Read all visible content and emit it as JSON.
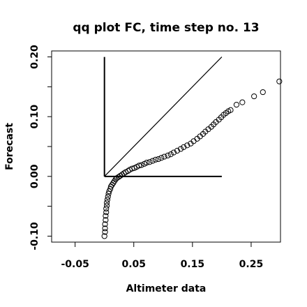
{
  "chart_data": {
    "type": "scatter",
    "title": "qq plot FC, time step no. 13",
    "xlabel": "Altimeter data",
    "ylabel": "Forecast",
    "xlim": [
      -0.09,
      0.3
    ],
    "ylim": [
      -0.11,
      0.21
    ],
    "x_ticks": [
      -0.05,
      0.05,
      0.15,
      0.25
    ],
    "x_tick_labels": [
      "-0.05",
      "0.05",
      "0.15",
      "0.25"
    ],
    "y_ticks": [
      -0.1,
      0.0,
      0.1,
      0.2
    ],
    "y_tick_labels": [
      "-0.10",
      "0.00",
      "0.10",
      "0.20"
    ],
    "grid": false,
    "reference_lines": [
      {
        "name": "",
        "x": [
          0,
          0.2
        ],
        "y": [
          0,
          0.2
        ]
      },
      {
        "name": "",
        "x": [
          0,
          0
        ],
        "y": [
          0,
          0.2
        ]
      },
      {
        "name": "",
        "x": [
          0,
          0.2
        ],
        "y": [
          0,
          0
        ]
      }
    ],
    "points": {
      "x": [
        0.0,
        0.001,
        0.001,
        0.001,
        0.002,
        0.002,
        0.003,
        0.003,
        0.004,
        0.004,
        0.005,
        0.006,
        0.007,
        0.008,
        0.01,
        0.011,
        0.013,
        0.015,
        0.017,
        0.019,
        0.021,
        0.024,
        0.027,
        0.03,
        0.033,
        0.036,
        0.04,
        0.043,
        0.047,
        0.051,
        0.055,
        0.059,
        0.063,
        0.068,
        0.072,
        0.077,
        0.082,
        0.087,
        0.092,
        0.097,
        0.102,
        0.108,
        0.113,
        0.118,
        0.124,
        0.13,
        0.135,
        0.141,
        0.147,
        0.152,
        0.158,
        0.163,
        0.168,
        0.172,
        0.177,
        0.182,
        0.186,
        0.19,
        0.195,
        0.199,
        0.203,
        0.207,
        0.211,
        0.215,
        0.225,
        0.235,
        0.255,
        0.27,
        0.298
      ],
      "y": [
        -0.1,
        -0.093,
        -0.087,
        -0.08,
        -0.073,
        -0.066,
        -0.06,
        -0.054,
        -0.049,
        -0.044,
        -0.039,
        -0.034,
        -0.029,
        -0.025,
        -0.021,
        -0.017,
        -0.014,
        -0.011,
        -0.008,
        -0.005,
        -0.003,
        -0.001,
        0.001,
        0.003,
        0.005,
        0.007,
        0.009,
        0.011,
        0.013,
        0.014,
        0.016,
        0.018,
        0.019,
        0.021,
        0.023,
        0.024,
        0.026,
        0.028,
        0.029,
        0.031,
        0.033,
        0.035,
        0.037,
        0.04,
        0.043,
        0.046,
        0.049,
        0.052,
        0.055,
        0.059,
        0.063,
        0.067,
        0.071,
        0.075,
        0.079,
        0.083,
        0.087,
        0.091,
        0.095,
        0.099,
        0.103,
        0.106,
        0.109,
        0.111,
        0.12,
        0.124,
        0.134,
        0.141,
        0.159
      ]
    }
  }
}
